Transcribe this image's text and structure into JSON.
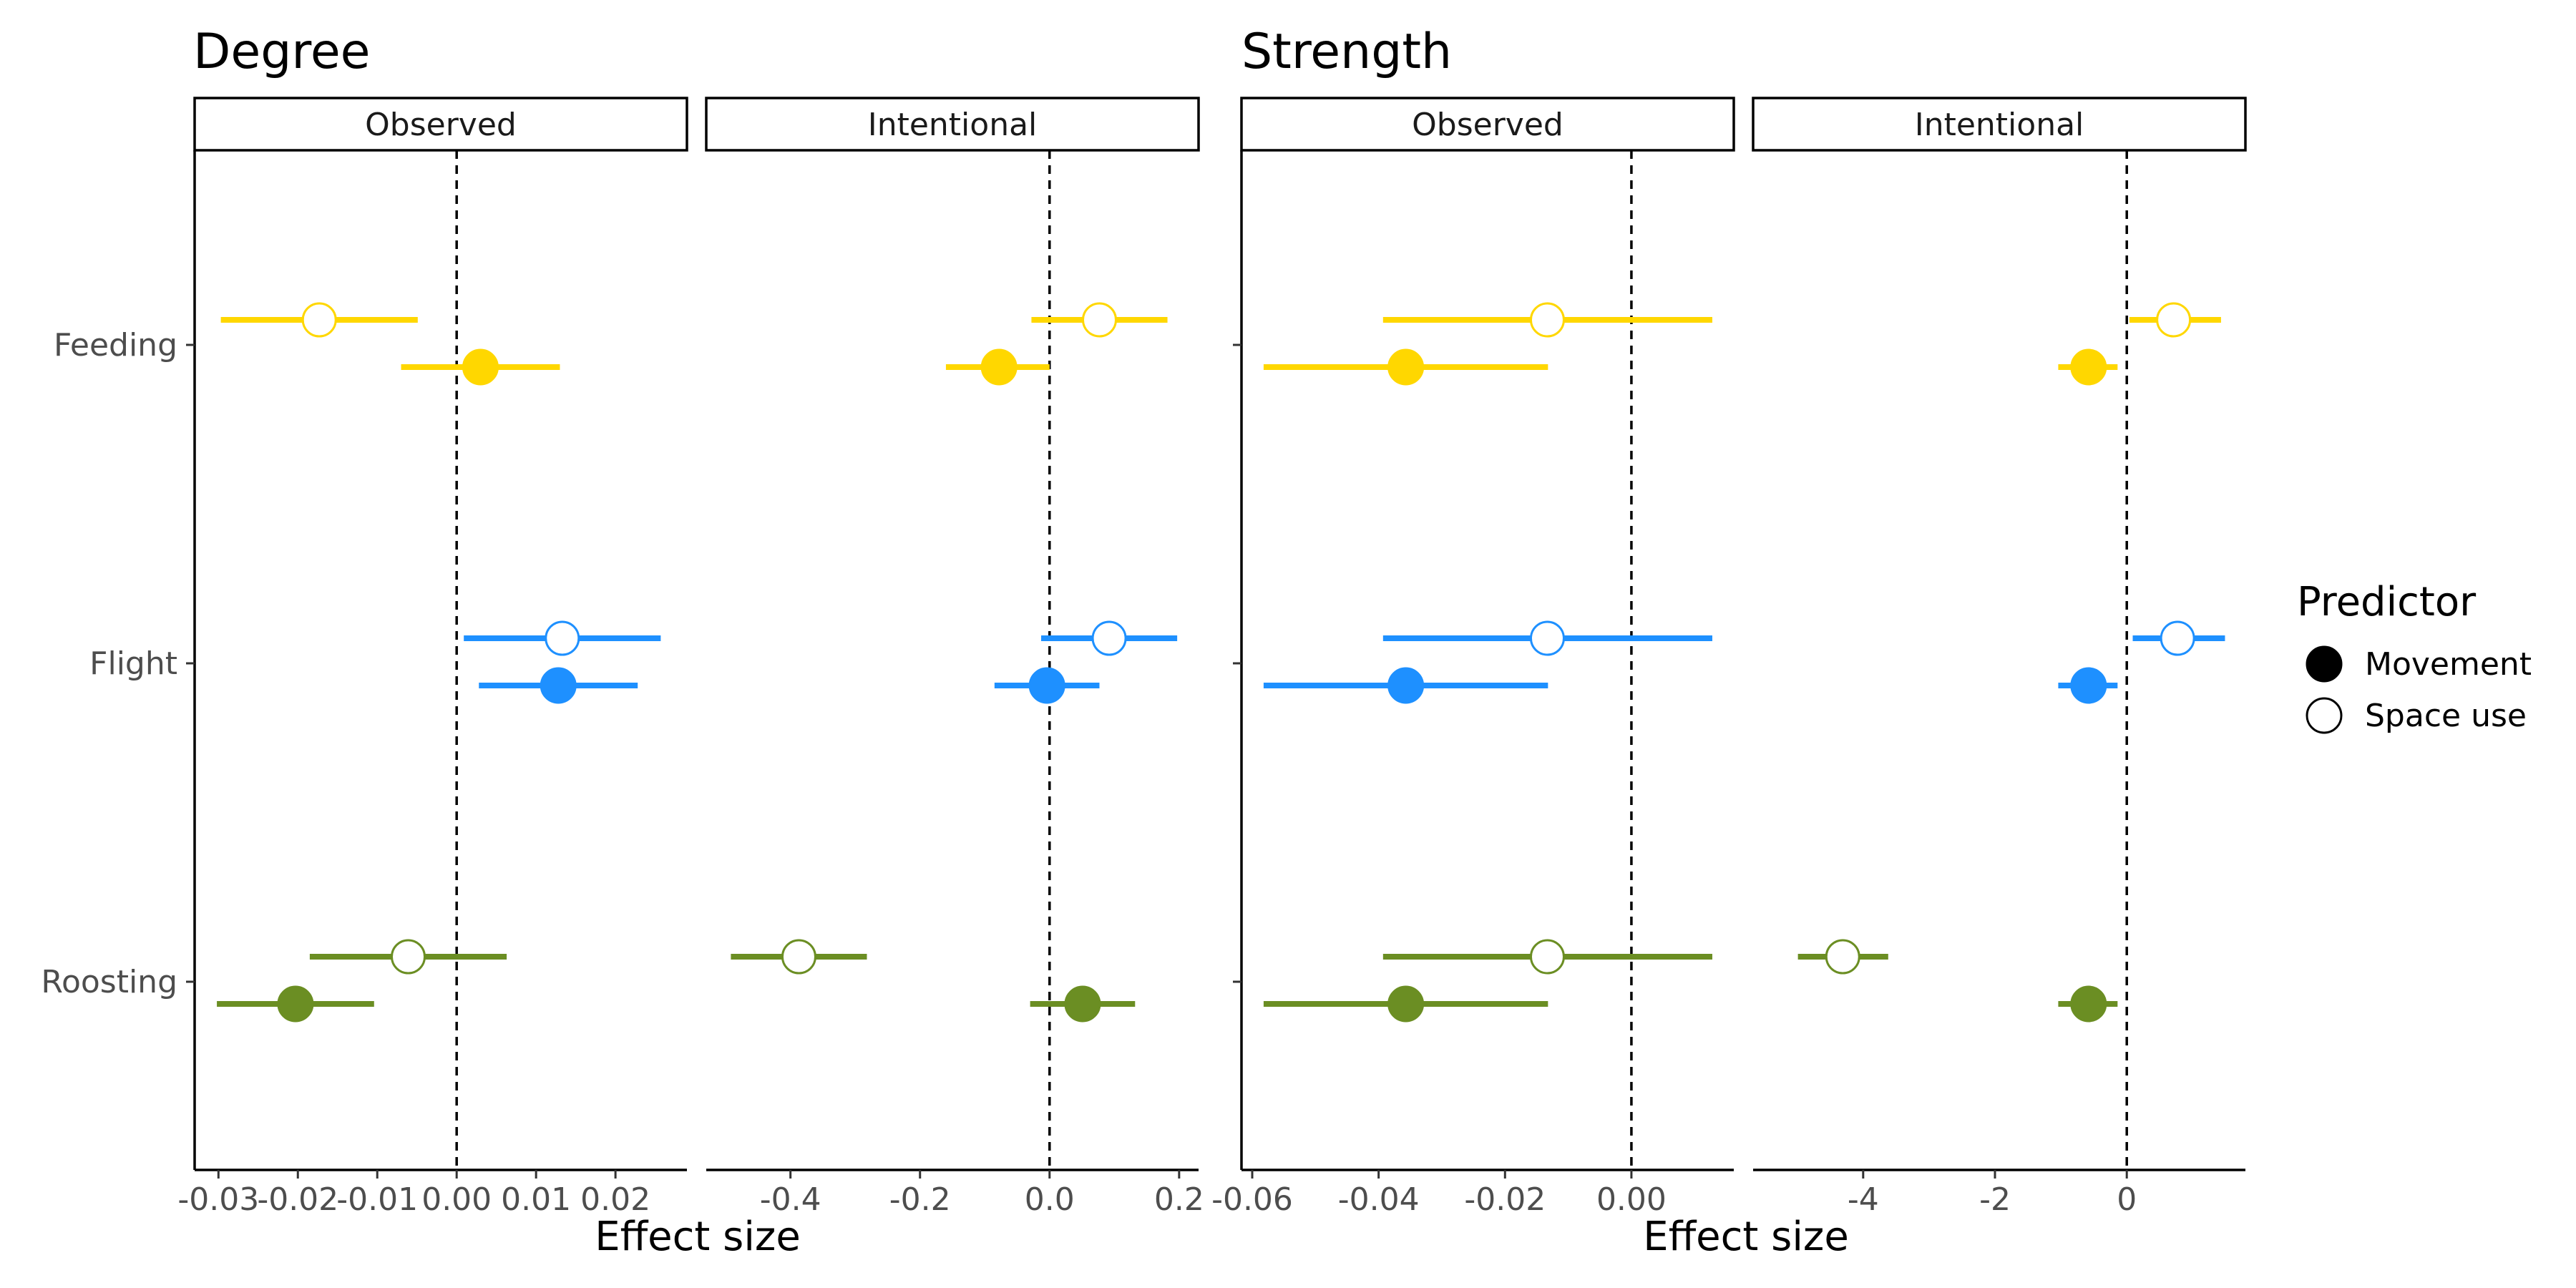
{
  "groups": [
    {
      "title": "Degree",
      "xlabel": "Effect size"
    },
    {
      "title": "Strength",
      "xlabel": "Effect size"
    }
  ],
  "legend": {
    "title": "Predictor",
    "items": [
      {
        "label": "Movement",
        "fill": "filled"
      },
      {
        "label": "Space use",
        "fill": "open"
      }
    ]
  },
  "colors": {
    "Feeding": "#FFD700",
    "Flight": "#1E90FF",
    "Roosting": "#6B8E23"
  },
  "chart_data": [
    {
      "type": "scatter",
      "group": "Degree",
      "panel": "Observed",
      "categories": [
        "Feeding",
        "Flight",
        "Roosting"
      ],
      "xlim": [
        -0.033,
        0.029
      ],
      "xticks": [
        -0.03,
        -0.02,
        -0.01,
        0.0,
        0.01,
        0.02
      ],
      "xtick_labels": [
        "-0.03",
        "-0.02",
        "-0.01",
        "0.00",
        "0.01",
        "0.02"
      ],
      "reference_line": 0,
      "series": [
        {
          "name": "Movement",
          "points": [
            {
              "category": "Feeding",
              "estimate": 0.003,
              "lower": -0.007,
              "upper": 0.013
            },
            {
              "category": "Flight",
              "estimate": 0.0128,
              "lower": 0.0028,
              "upper": 0.0228
            },
            {
              "category": "Roosting",
              "estimate": -0.0203,
              "lower": -0.0302,
              "upper": -0.0104
            }
          ]
        },
        {
          "name": "Space use",
          "points": [
            {
              "category": "Feeding",
              "estimate": -0.0173,
              "lower": -0.0297,
              "upper": -0.0049
            },
            {
              "category": "Flight",
              "estimate": 0.0133,
              "lower": 0.0009,
              "upper": 0.0257
            },
            {
              "category": "Roosting",
              "estimate": -0.0061,
              "lower": -0.0185,
              "upper": 0.0063
            }
          ]
        }
      ]
    },
    {
      "type": "scatter",
      "group": "Degree",
      "panel": "Intentional",
      "categories": [
        "Feeding",
        "Flight",
        "Roosting"
      ],
      "xlim": [
        -0.53,
        0.23
      ],
      "xticks": [
        -0.4,
        -0.2,
        0.0,
        0.2
      ],
      "xtick_labels": [
        "-0.4",
        "-0.2",
        "0.0",
        "0.2"
      ],
      "reference_line": 0,
      "series": [
        {
          "name": "Movement",
          "points": [
            {
              "category": "Feeding",
              "estimate": -0.078,
              "lower": -0.16,
              "upper": 0.0
            },
            {
              "category": "Flight",
              "estimate": -0.004,
              "lower": -0.085,
              "upper": 0.077
            },
            {
              "category": "Roosting",
              "estimate": 0.051,
              "lower": -0.03,
              "upper": 0.132
            }
          ]
        },
        {
          "name": "Space use",
          "points": [
            {
              "category": "Feeding",
              "estimate": 0.077,
              "lower": -0.028,
              "upper": 0.182
            },
            {
              "category": "Flight",
              "estimate": 0.092,
              "lower": -0.013,
              "upper": 0.197
            },
            {
              "category": "Roosting",
              "estimate": -0.387,
              "lower": -0.492,
              "upper": -0.282
            }
          ]
        }
      ]
    },
    {
      "type": "scatter",
      "group": "Strength",
      "panel": "Observed",
      "categories": [
        "Feeding",
        "Flight",
        "Roosting"
      ],
      "xlim": [
        -0.0617,
        0.0162
      ],
      "xticks": [
        -0.06,
        -0.04,
        -0.02,
        0.0
      ],
      "xtick_labels": [
        "-0.06",
        "-0.04",
        "-0.02",
        "0.00"
      ],
      "reference_line": 0,
      "series": [
        {
          "name": "Movement",
          "points": [
            {
              "category": "Feeding",
              "estimate": -0.0357,
              "lower": -0.0582,
              "upper": -0.0132
            },
            {
              "category": "Flight",
              "estimate": -0.0357,
              "lower": -0.0582,
              "upper": -0.0132
            },
            {
              "category": "Roosting",
              "estimate": -0.0357,
              "lower": -0.0582,
              "upper": -0.0132
            }
          ]
        },
        {
          "name": "Space use",
          "points": [
            {
              "category": "Feeding",
              "estimate": -0.0133,
              "lower": -0.0393,
              "upper": 0.0128
            },
            {
              "category": "Flight",
              "estimate": -0.0133,
              "lower": -0.0393,
              "upper": 0.0128
            },
            {
              "category": "Roosting",
              "estimate": -0.0133,
              "lower": -0.0393,
              "upper": 0.0128
            }
          ]
        }
      ]
    },
    {
      "type": "scatter",
      "group": "Strength",
      "panel": "Intentional",
      "categories": [
        "Feeding",
        "Flight",
        "Roosting"
      ],
      "xlim": [
        -5.67,
        1.8
      ],
      "xticks": [
        -4,
        -2,
        0
      ],
      "xtick_labels": [
        "-4",
        "-2",
        "0"
      ],
      "reference_line": 0,
      "series": [
        {
          "name": "Movement",
          "points": [
            {
              "category": "Feeding",
              "estimate": -0.58,
              "lower": -1.04,
              "upper": -0.14
            },
            {
              "category": "Flight",
              "estimate": -0.58,
              "lower": -1.04,
              "upper": -0.14
            },
            {
              "category": "Roosting",
              "estimate": -0.58,
              "lower": -1.04,
              "upper": -0.14
            }
          ]
        },
        {
          "name": "Space use",
          "points": [
            {
              "category": "Feeding",
              "estimate": 0.71,
              "lower": 0.04,
              "upper": 1.43
            },
            {
              "category": "Flight",
              "estimate": 0.77,
              "lower": 0.09,
              "upper": 1.49
            },
            {
              "category": "Roosting",
              "estimate": -4.31,
              "lower": -4.99,
              "upper": -3.62
            }
          ]
        }
      ]
    }
  ]
}
